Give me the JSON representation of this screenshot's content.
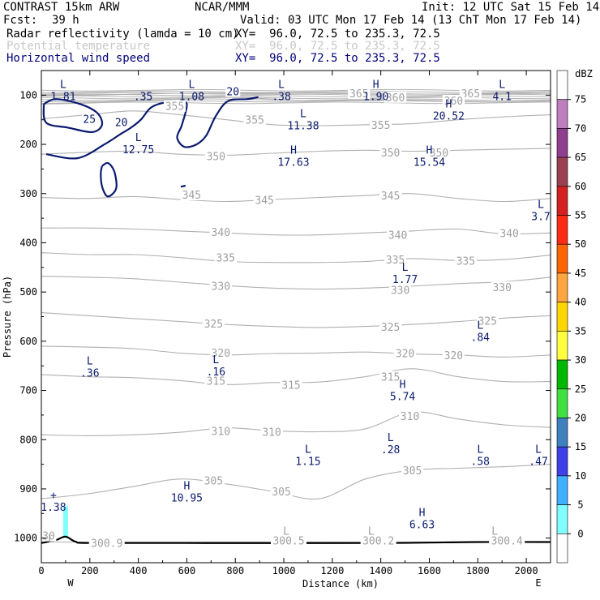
{
  "header": {
    "model": "CONTRAST 15km ARW",
    "org": "NCAR/MMM",
    "init": "Init: 12 UTC Sat 15 Feb 14",
    "fcst_label": "Fcst:",
    "fcst_value": "39 h",
    "valid": "Valid: 03 UTC Mon 17 Feb 14 (13 ChT Mon 17 Feb 14)",
    "fields": [
      {
        "name": "Radar reflectivity (lamda = 10 cm)",
        "xy": "XY=  96.0, 72.5 to 235.3, 72.5",
        "color": "#000000"
      },
      {
        "name": "Potential temperature",
        "xy": "XY=  96.0, 72.5 to 235.3, 72.5",
        "color": "#c8c8c8"
      },
      {
        "name": "Horizontal wind speed",
        "xy": "XY=  96.0, 72.5 to 235.3, 72.5",
        "color": "#00007a"
      }
    ]
  },
  "chart_data": {
    "type": "cross-section",
    "title": "CONTRAST 15km ARW",
    "xlabel": "Distance (km)",
    "ylabel": "Pressure (hPa)",
    "xlim": [
      0,
      2100
    ],
    "ylim_hpa": [
      1050,
      50
    ],
    "x_ticks": [
      0,
      200,
      400,
      600,
      800,
      1000,
      1200,
      1400,
      1600,
      1800,
      2000
    ],
    "y_ticks": [
      100,
      200,
      300,
      400,
      500,
      600,
      700,
      800,
      900,
      1000
    ],
    "x_end_labels": {
      "left": "W",
      "right": "E"
    },
    "theta_contours": [
      {
        "theta": 300,
        "pressures": [
          1008,
          1008,
          1008,
          1008,
          1008,
          1008
        ]
      },
      {
        "theta": 305,
        "pressures": [
          920,
          910,
          895,
          880,
          890,
          905,
          920,
          880,
          862,
          858,
          855,
          850
        ]
      },
      {
        "theta": 310,
        "pressures": [
          790,
          792,
          790,
          785,
          776,
          782,
          784,
          778,
          744,
          758,
          770,
          775
        ]
      },
      {
        "theta": 315,
        "pressures": [
          668,
          672,
          674,
          680,
          688,
          684,
          683,
          672,
          656,
          672,
          682,
          682
        ]
      },
      {
        "theta": 320,
        "pressures": [
          610,
          612,
          615,
          624,
          628,
          625,
          624,
          622,
          626,
          628,
          632,
          628
        ]
      },
      {
        "theta": 325,
        "pressures": [
          542,
          548,
          554,
          560,
          566,
          570,
          572,
          570,
          566,
          560,
          553,
          548
        ]
      },
      {
        "theta": 330,
        "pressures": [
          468,
          470,
          473,
          480,
          487,
          492,
          494,
          492,
          488,
          483,
          479,
          470
        ]
      },
      {
        "theta": 335,
        "pressures": [
          420,
          424,
          424,
          430,
          438,
          440,
          440,
          438,
          432,
          436,
          434,
          425
        ]
      },
      {
        "theta": 340,
        "pressures": [
          370,
          370,
          372,
          376,
          380,
          384,
          384,
          380,
          376,
          372,
          382,
          380
        ]
      },
      {
        "theta": 345,
        "pressures": [
          308,
          310,
          306,
          312,
          316,
          312,
          308,
          304,
          300,
          310,
          316,
          310
        ]
      },
      {
        "theta": 350,
        "pressures": [
          220,
          216,
          214,
          220,
          222,
          218,
          214,
          212,
          214,
          212,
          210,
          208
        ]
      },
      {
        "theta": 355,
        "pressures": [
          148,
          140,
          132,
          140,
          150,
          160,
          162,
          160,
          158,
          150,
          144,
          140
        ]
      },
      {
        "theta": 360,
        "pressures": [
          118,
          116,
          112,
          108,
          104,
          108,
          112,
          110,
          110,
          112,
          114,
          112
        ]
      },
      {
        "theta": 365,
        "pressures": [
          100,
          100,
          98,
          96,
          96,
          96,
          96,
          98,
          98,
          98,
          97,
          96
        ]
      }
    ],
    "theta_labels": [
      {
        "text": "365",
        "x": 1310,
        "p": 96
      },
      {
        "text": "360",
        "x": 1460,
        "p": 104
      },
      {
        "text": "365",
        "x": 1770,
        "p": 96
      },
      {
        "text": "360",
        "x": 1700,
        "p": 111
      },
      {
        "text": "355",
        "x": 550,
        "p": 122
      },
      {
        "text": "355",
        "x": 880,
        "p": 150
      },
      {
        "text": "355",
        "x": 1400,
        "p": 160
      },
      {
        "text": "350",
        "x": 1440,
        "p": 216
      },
      {
        "text": "350",
        "x": 1640,
        "p": 216
      },
      {
        "text": "350",
        "x": 720,
        "p": 224
      },
      {
        "text": "345",
        "x": 620,
        "p": 302
      },
      {
        "text": "345",
        "x": 920,
        "p": 313
      },
      {
        "text": "345",
        "x": 1440,
        "p": 304
      },
      {
        "text": "340",
        "x": 740,
        "p": 378
      },
      {
        "text": "340",
        "x": 1470,
        "p": 384
      },
      {
        "text": "340",
        "x": 1930,
        "p": 380
      },
      {
        "text": "335",
        "x": 760,
        "p": 430
      },
      {
        "text": "335",
        "x": 1460,
        "p": 434
      },
      {
        "text": "335",
        "x": 1750,
        "p": 436
      },
      {
        "text": "330",
        "x": 740,
        "p": 487
      },
      {
        "text": "330",
        "x": 1480,
        "p": 496
      },
      {
        "text": "330",
        "x": 1900,
        "p": 490
      },
      {
        "text": "325",
        "x": 710,
        "p": 564
      },
      {
        "text": "325",
        "x": 1440,
        "p": 571
      },
      {
        "text": "325",
        "x": 1840,
        "p": 558
      },
      {
        "text": "320",
        "x": 740,
        "p": 623
      },
      {
        "text": "320",
        "x": 1500,
        "p": 624
      },
      {
        "text": "320",
        "x": 1700,
        "p": 628
      },
      {
        "text": "315",
        "x": 720,
        "p": 680
      },
      {
        "text": "315",
        "x": 1030,
        "p": 688
      },
      {
        "text": "315",
        "x": 1440,
        "p": 672
      },
      {
        "text": "310",
        "x": 740,
        "p": 782
      },
      {
        "text": "310",
        "x": 950,
        "p": 784
      },
      {
        "text": "310",
        "x": 1520,
        "p": 752
      },
      {
        "text": "305",
        "x": 710,
        "p": 883
      },
      {
        "text": "305",
        "x": 990,
        "p": 905
      },
      {
        "text": "305",
        "x": 1530,
        "p": 862
      },
      {
        "text": "300.9",
        "x": 270,
        "p": 1010
      },
      {
        "text": "300.5",
        "x": 1020,
        "p": 1005
      },
      {
        "text": "300.2",
        "x": 1390,
        "p": 1005
      },
      {
        "text": "300.4",
        "x": 1920,
        "p": 1005
      },
      {
        "text": "30",
        "x": 30,
        "p": 995
      }
    ],
    "theta_extrema": [
      {
        "kind": "L",
        "x": 40,
        "p": 1000
      },
      {
        "kind": "L",
        "x": 1010,
        "p": 985
      },
      {
        "kind": "L",
        "x": 1360,
        "p": 985
      },
      {
        "kind": "L",
        "x": 1870,
        "p": 985
      }
    ],
    "wind_contours": [
      {
        "label": "25",
        "points": [
          [
            10,
            118
          ],
          [
            60,
            108
          ],
          [
            160,
            118
          ],
          [
            230,
            136
          ],
          [
            250,
            160
          ],
          [
            210,
            175
          ],
          [
            110,
            166
          ],
          [
            20,
            156
          ],
          [
            10,
            118
          ]
        ]
      },
      {
        "label": "20",
        "points": [
          [
            20,
            220
          ],
          [
            150,
            228
          ],
          [
            260,
            200
          ],
          [
            330,
            178
          ],
          [
            370,
            166
          ],
          [
            410,
            150
          ],
          [
            450,
            126
          ],
          [
            500,
            116
          ],
          [
            560,
            114
          ],
          [
            600,
            118
          ],
          [
            580,
            160
          ],
          [
            560,
            186
          ],
          [
            590,
            205
          ],
          [
            640,
            200
          ],
          [
            680,
            182
          ],
          [
            720,
            142
          ],
          [
            770,
            112
          ],
          [
            850,
            108
          ],
          [
            895,
            104
          ]
        ]
      },
      {
        "label": "",
        "points": [
          [
            250,
            244
          ],
          [
            275,
            238
          ],
          [
            300,
            254
          ],
          [
            310,
            285
          ],
          [
            295,
            300
          ],
          [
            270,
            305
          ],
          [
            250,
            285
          ],
          [
            245,
            260
          ],
          [
            250,
            244
          ]
        ]
      },
      {
        "label": "",
        "points": [
          [
            575,
            286
          ],
          [
            595,
            284
          ]
        ]
      }
    ],
    "wind_labels": [
      {
        "text": "25",
        "x": 198,
        "p": 148
      },
      {
        "text": "20",
        "x": 330,
        "p": 155
      },
      {
        "text": "20",
        "x": 790,
        "p": 92
      }
    ],
    "wind_extrema": [
      {
        "kind": "L",
        "value": "1.81",
        "x": 90,
        "p": 90
      },
      {
        "kind": "",
        "value": ".35",
        "x": 420,
        "p": 90
      },
      {
        "kind": "L",
        "value": "1.08",
        "x": 620,
        "p": 90
      },
      {
        "kind": "L",
        "value": ".38",
        "x": 990,
        "p": 90
      },
      {
        "kind": "H",
        "value": "1.90",
        "x": 1380,
        "p": 90
      },
      {
        "kind": "L",
        "value": "4.1",
        "x": 1900,
        "p": 90
      },
      {
        "kind": "L",
        "value": "11.38",
        "x": 1080,
        "p": 150
      },
      {
        "kind": "H",
        "value": "20.52",
        "x": 1680,
        "p": 130
      },
      {
        "kind": "L",
        "value": "12.75",
        "x": 400,
        "p": 198
      },
      {
        "kind": "H",
        "value": "17.63",
        "x": 1040,
        "p": 224
      },
      {
        "kind": "H",
        "value": "15.54",
        "x": 1600,
        "p": 224
      },
      {
        "kind": "L",
        "value": "3.7",
        "x": 2060,
        "p": 334
      },
      {
        "kind": "L",
        "value": "1.77",
        "x": 1500,
        "p": 462
      },
      {
        "kind": "L",
        "value": ".84",
        "x": 1810,
        "p": 580
      },
      {
        "kind": "L",
        "value": ".36",
        "x": 200,
        "p": 652
      },
      {
        "kind": "L",
        "value": ".16",
        "x": 720,
        "p": 650
      },
      {
        "kind": "H",
        "value": "5.74",
        "x": 1490,
        "p": 700
      },
      {
        "kind": "L",
        "value": ".28",
        "x": 1440,
        "p": 808
      },
      {
        "kind": "L",
        "value": "1.15",
        "x": 1100,
        "p": 832
      },
      {
        "kind": "L",
        "value": ".58",
        "x": 1810,
        "p": 832
      },
      {
        "kind": "L",
        "value": ".47",
        "x": 2050,
        "p": 832
      },
      {
        "kind": "H",
        "value": "10.95",
        "x": 600,
        "p": 906
      },
      {
        "kind": "+",
        "value": "1.38",
        "x": 50,
        "p": 925
      },
      {
        "kind": "H",
        "value": "6.63",
        "x": 1570,
        "p": 960
      }
    ],
    "reflectivity_patch": {
      "x": 100,
      "p_top": 935,
      "p_bottom": 1000,
      "dbz": 5
    },
    "terrain_pressure": [
      [
        0,
        1010
      ],
      [
        60,
        1004
      ],
      [
        100,
        997
      ],
      [
        140,
        1007
      ],
      [
        200,
        1010
      ],
      [
        600,
        1010
      ],
      [
        1400,
        1010
      ],
      [
        1800,
        1008
      ],
      [
        2100,
        1008
      ]
    ],
    "colorbar": {
      "unit": "dBZ",
      "levels": [
        "75",
        "70",
        "65",
        "60",
        "55",
        "50",
        "45",
        "40",
        "35",
        "30",
        "25",
        "20",
        "15",
        "10",
        "5",
        "0"
      ],
      "colors": [
        "#ffffff",
        "#bf7fbf",
        "#8f3f8f",
        "#9a4050",
        "#d42020",
        "#ff2a14",
        "#ff6400",
        "#ffa640",
        "#ffd700",
        "#ffff40",
        "#00b800",
        "#40e040",
        "#3f80bf",
        "#3f40e8",
        "#3fb0ff",
        "#80ffff",
        "#ffffff"
      ]
    }
  }
}
